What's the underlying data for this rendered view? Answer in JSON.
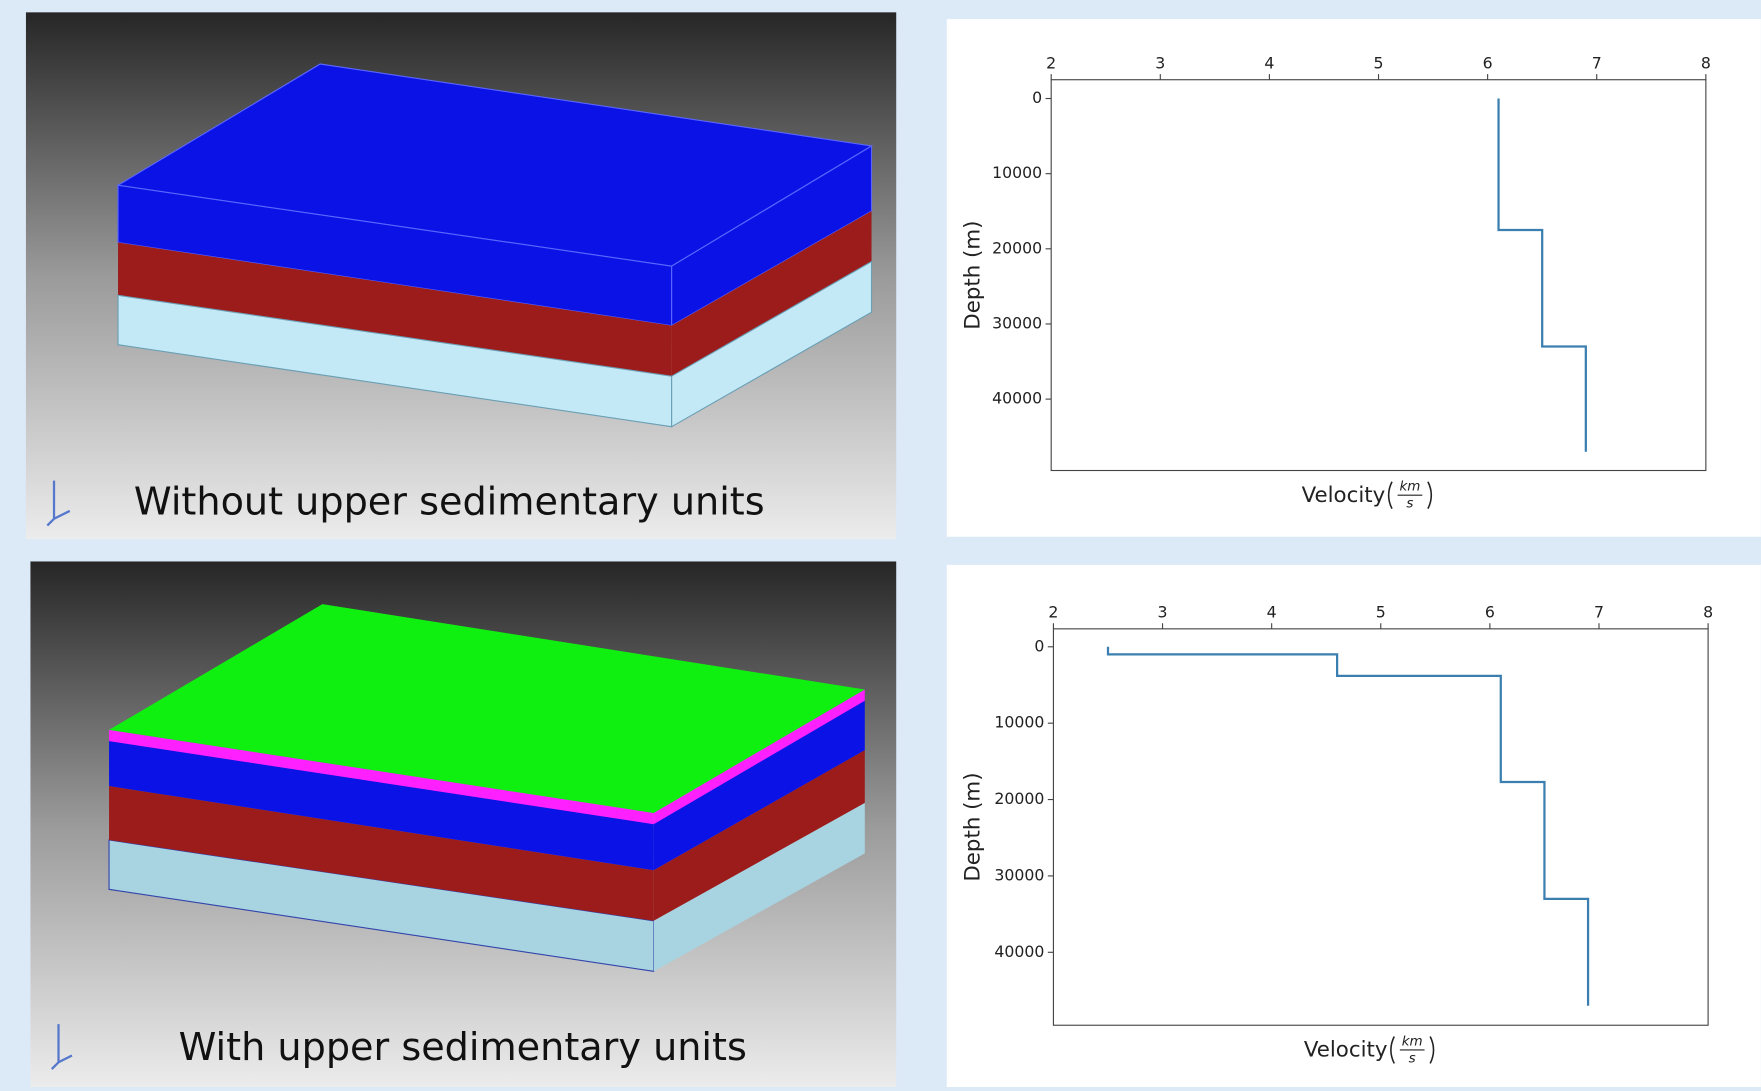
{
  "panels": [
    {
      "caption": "Without upper sedimentary units"
    },
    {
      "caption": "With upper sedimentary units"
    }
  ],
  "chart_data": [
    {
      "type": "line",
      "color": "#3a7fb0",
      "xlabel": "Velocity",
      "unit_numerator": "km",
      "unit_denominator": "s",
      "ylabel": "Depth (m)",
      "x": [
        6.1,
        6.1,
        6.5,
        6.5,
        6.9,
        6.9
      ],
      "values": [
        0,
        17500,
        17500,
        33000,
        33000,
        47000
      ],
      "xlim": [
        2,
        8
      ],
      "xticks": [
        2,
        3,
        4,
        5,
        6,
        7,
        8
      ],
      "ylim": [
        -2500,
        49500
      ],
      "yticks": [
        0,
        10000,
        20000,
        30000,
        40000
      ],
      "y_inverted": true,
      "x_axis_top": true
    },
    {
      "type": "line",
      "color": "#3a7fb0",
      "xlabel": "Velocity",
      "unit_numerator": "km",
      "unit_denominator": "s",
      "ylabel": "Depth (m)",
      "x": [
        2.5,
        2.5,
        4.6,
        4.6,
        6.1,
        6.1,
        6.5,
        6.5,
        6.9,
        6.9
      ],
      "values": [
        0,
        1000,
        1000,
        3800,
        3800,
        17700,
        17700,
        33000,
        33000,
        47000
      ],
      "xlim": [
        2,
        8
      ],
      "xticks": [
        2,
        3,
        4,
        5,
        6,
        7,
        8
      ],
      "ylim": [
        -2350,
        49550
      ],
      "yticks": [
        0,
        10000,
        20000,
        30000,
        40000
      ],
      "y_inverted": true,
      "x_axis_top": true
    }
  ]
}
